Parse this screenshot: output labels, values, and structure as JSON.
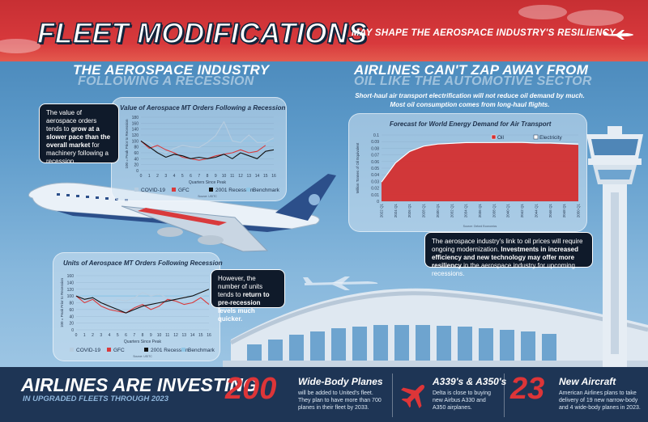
{
  "header": {
    "title": "FLEET MODIFICATIONS",
    "subtitle": "MAY SHAPE THE AEROSPACE INDUSTRY'S RESILIENCY"
  },
  "left_section": {
    "title": "THE AEROSPACE INDUSTRY",
    "subtitle": "FOLLOWING A RECESSION"
  },
  "right_section": {
    "title": "AIRLINES CAN'T ZAP AWAY FROM",
    "subtitle": "OIL LIKE THE AUTOMOTIVE SECTOR",
    "note_line1": "Short-haul air transport electrification will not reduce oil demand by much.",
    "note_line2": "Most oil consumption comes from long-haul flights."
  },
  "callouts": {
    "value": {
      "pre": "The value of aerospace orders tends to ",
      "bold": "grow at a slower pace than the overall market",
      "post": " for machinery following a recession."
    },
    "units": {
      "pre": "However, the number of units tends to ",
      "bold": "return to pre-recession levels much quicker."
    },
    "oil": {
      "pre": "The aerospace industry's link to oil prices will require ongoing modernization. ",
      "bold": "Investments in increased efficiency and new technology may offer more resiliency",
      "post": " in the aerospace industry for upcoming recessions."
    }
  },
  "colors": {
    "covid": "#b7cde0",
    "gfc": "#d93a3c",
    "recession2001": "#111111",
    "benchmark": "#8fc6e6",
    "oil": "#d42f2f",
    "electricity": "#ffffff",
    "navy": "#1e3555",
    "header_red": "#d8393c"
  },
  "bottom": {
    "title": "AIRLINES ARE INVESTING",
    "subtitle": "IN UPGRADED FLEETS THROUGH 2023",
    "stat1": {
      "number": "200",
      "head": "Wide-Body Planes",
      "body": "will be added to United's fleet. They plan to have more than 700 planes in their fleet by 2033."
    },
    "stat2": {
      "icon": "airplane-icon",
      "head": "A339's & A350's",
      "body": "Delta is close to buying new Airbus A330 and A350 airplanes."
    },
    "stat3": {
      "number": "23",
      "head": "New Aircraft",
      "body": "American Airlines plans to take delivery of 19 new narrow-body and 4 wide-body planes in 2023."
    }
  },
  "chart_data": [
    {
      "type": "line",
      "title": "Value of Aerospace MT Orders Following a Recession",
      "xlabel": "Quarters Since Peak",
      "ylabel": "100 = Peak Prior to Recession",
      "source": "Source: USITC",
      "x": [
        0,
        1,
        2,
        3,
        4,
        5,
        6,
        7,
        8,
        9,
        10,
        11,
        12,
        13,
        14,
        15,
        16
      ],
      "ylim": [
        0,
        180
      ],
      "yticks": [
        0,
        20,
        40,
        60,
        80,
        100,
        120,
        140,
        160,
        180
      ],
      "series": [
        {
          "name": "COVID-19",
          "values": [
            100,
            95,
            70,
            60,
            75,
            85,
            80,
            78,
            95,
            118,
            165,
            100,
            95,
            120,
            95,
            95,
            110
          ]
        },
        {
          "name": "GFC",
          "values": [
            100,
            75,
            85,
            70,
            60,
            45,
            40,
            35,
            40,
            50,
            55,
            60,
            70,
            60,
            65,
            85,
            null
          ]
        },
        {
          "name": "2001 Recession",
          "values": [
            100,
            80,
            60,
            45,
            55,
            50,
            40,
            45,
            40,
            45,
            55,
            40,
            60,
            50,
            40,
            65,
            70
          ]
        },
        {
          "name": "Benchmark",
          "values": [
            100,
            100,
            100,
            100,
            100,
            100,
            100,
            100,
            100,
            100,
            100,
            100,
            100,
            100,
            100,
            100,
            100
          ]
        }
      ]
    },
    {
      "type": "line",
      "title": "Units of Aerospace MT Orders Following Recession",
      "xlabel": "Quarters Since Peak",
      "ylabel": "100 = Peak Prior to Recession",
      "source": "Source: USITC",
      "x": [
        0,
        1,
        2,
        3,
        4,
        5,
        6,
        7,
        8,
        9,
        10,
        11,
        12,
        13,
        14,
        15,
        16
      ],
      "ylim": [
        0,
        160
      ],
      "yticks": [
        0,
        20,
        40,
        60,
        80,
        100,
        120,
        140,
        160
      ],
      "series": [
        {
          "name": "COVID-19",
          "values": [
            100,
            95,
            85,
            80,
            75,
            90,
            85,
            95,
            110,
            100,
            105,
            95,
            85,
            100,
            95,
            100,
            105
          ]
        },
        {
          "name": "GFC",
          "values": [
            100,
            80,
            90,
            70,
            60,
            55,
            50,
            65,
            75,
            60,
            70,
            90,
            85,
            75,
            80,
            95,
            75
          ]
        },
        {
          "name": "2001 Recession",
          "values": [
            100,
            90,
            95,
            80,
            70,
            60,
            50,
            60,
            70,
            75,
            80,
            85,
            90,
            95,
            100,
            110,
            120
          ]
        },
        {
          "name": "Benchmark",
          "values": [
            100,
            100,
            100,
            100,
            100,
            100,
            100,
            100,
            100,
            100,
            100,
            100,
            100,
            100,
            100,
            100,
            100
          ]
        }
      ]
    },
    {
      "type": "area",
      "title": "Forecast for World Energy Demand for Air Transport",
      "ylabel": "Million Tonnes of Oil Equivalent",
      "source": "Source: Oxford Economics",
      "categories": [
        "2022 Q1",
        "2024 Q1",
        "2026 Q1",
        "2028 Q1",
        "2030 Q1",
        "2032 Q1",
        "2034 Q1",
        "2036 Q1",
        "2038 Q1",
        "2040 Q1",
        "2042 Q1",
        "2044 Q1",
        "2046 Q1",
        "2048 Q1",
        "2050 Q1"
      ],
      "ylim": [
        0,
        0.1
      ],
      "yticks": [
        0,
        0.01,
        0.02,
        0.03,
        0.04,
        0.05,
        0.06,
        0.07,
        0.08,
        0.09,
        0.1
      ],
      "series": [
        {
          "name": "Oil",
          "values": [
            0.029,
            0.058,
            0.075,
            0.083,
            0.086,
            0.087,
            0.088,
            0.088,
            0.088,
            0.088,
            0.088,
            0.087,
            0.087,
            0.086,
            0.085
          ]
        },
        {
          "name": "Electricity",
          "values": [
            0,
            0,
            0.0001,
            0.0002,
            0.0003,
            0.0004,
            0.0005,
            0.0006,
            0.0007,
            0.0008,
            0.0009,
            0.001,
            0.0011,
            0.0012,
            0.0013
          ]
        }
      ]
    }
  ]
}
